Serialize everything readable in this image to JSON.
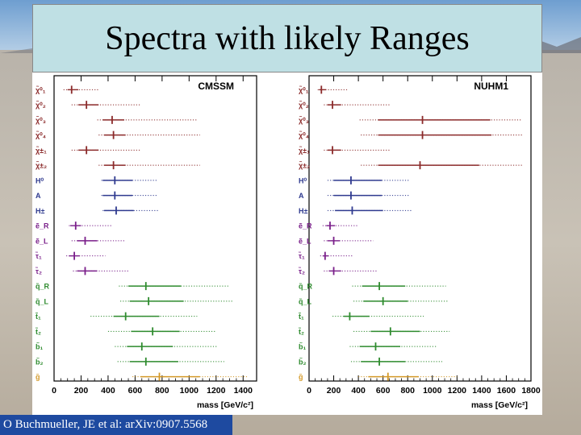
{
  "title": "Spectra with likely Ranges",
  "citation": "O Buchmueller, JE et al: arXiv:0907.5568",
  "colors": {
    "neutralino": "#8b2a2a",
    "higgs": "#2f3a8f",
    "slepton": "#7a1f8a",
    "squark": "#2e8b2e",
    "gluino": "#d49a2a"
  },
  "particles": [
    "χ̃⁰₁",
    "χ̃⁰₂",
    "χ̃⁰₃",
    "χ̃⁰₄",
    "χ̃±₁",
    "χ̃±₂",
    "H⁰",
    "A",
    "H±",
    "ẽ_R",
    "ẽ_L",
    "τ̃₁",
    "τ̃₂",
    "q̃_R",
    "q̃_L",
    "t̃₁",
    "t̃₂",
    "b̃₁",
    "b̃₂",
    "g̃"
  ],
  "groups": [
    "neutralino",
    "neutralino",
    "neutralino",
    "neutralino",
    "neutralino",
    "neutralino",
    "higgs",
    "higgs",
    "higgs",
    "slepton",
    "slepton",
    "slepton",
    "slepton",
    "squark",
    "squark",
    "squark",
    "squark",
    "squark",
    "squark",
    "gluino"
  ],
  "chart_data": [
    {
      "type": "range",
      "title": "CMSSM",
      "xlabel": "mass [GeV/c²]",
      "xlim": [
        0,
        1500
      ],
      "ticks": [
        "0",
        "200",
        "400",
        "600",
        "800",
        "1000",
        "1200",
        "1400"
      ],
      "tick_values": [
        0,
        200,
        400,
        600,
        800,
        1000,
        1200,
        1400
      ],
      "series": [
        {
          "name": "χ̃⁰₁",
          "best": 130,
          "solid": [
            100,
            180
          ],
          "dotted": [
            70,
            330
          ]
        },
        {
          "name": "χ̃⁰₂",
          "best": 240,
          "solid": [
            180,
            330
          ],
          "dotted": [
            130,
            640
          ]
        },
        {
          "name": "χ̃⁰₃",
          "best": 430,
          "solid": [
            360,
            520
          ],
          "dotted": [
            320,
            1060
          ]
        },
        {
          "name": "χ̃⁰₄",
          "best": 440,
          "solid": [
            370,
            530
          ],
          "dotted": [
            330,
            1080
          ]
        },
        {
          "name": "χ̃±₁",
          "best": 240,
          "solid": [
            180,
            330
          ],
          "dotted": [
            130,
            640
          ]
        },
        {
          "name": "χ̃±₂",
          "best": 440,
          "solid": [
            370,
            530
          ],
          "dotted": [
            330,
            1080
          ]
        },
        {
          "name": "H⁰",
          "best": 450,
          "solid": [
            360,
            580
          ],
          "dotted": [
            350,
            760
          ]
        },
        {
          "name": "A",
          "best": 450,
          "solid": [
            360,
            580
          ],
          "dotted": [
            350,
            760
          ]
        },
        {
          "name": "H±",
          "best": 460,
          "solid": [
            370,
            590
          ],
          "dotted": [
            360,
            770
          ]
        },
        {
          "name": "ẽ_R",
          "best": 160,
          "solid": [
            120,
            200
          ],
          "dotted": [
            110,
            430
          ]
        },
        {
          "name": "ẽ_L",
          "best": 230,
          "solid": [
            170,
            320
          ],
          "dotted": [
            130,
            530
          ]
        },
        {
          "name": "τ̃₁",
          "best": 150,
          "solid": [
            110,
            190
          ],
          "dotted": [
            90,
            380
          ]
        },
        {
          "name": "τ̃₂",
          "best": 230,
          "solid": [
            170,
            320
          ],
          "dotted": [
            140,
            560
          ]
        },
        {
          "name": "q̃_R",
          "best": 680,
          "solid": [
            550,
            940
          ],
          "dotted": [
            480,
            1290
          ]
        },
        {
          "name": "q̃_L",
          "best": 700,
          "solid": [
            560,
            960
          ],
          "dotted": [
            490,
            1320
          ]
        },
        {
          "name": "t̃₁",
          "best": 530,
          "solid": [
            440,
            780
          ],
          "dotted": [
            270,
            1060
          ]
        },
        {
          "name": "t̃₂",
          "best": 730,
          "solid": [
            570,
            930
          ],
          "dotted": [
            400,
            1200
          ]
        },
        {
          "name": "b̃₁",
          "best": 650,
          "solid": [
            540,
            880
          ],
          "dotted": [
            450,
            1210
          ]
        },
        {
          "name": "b̃₂",
          "best": 680,
          "solid": [
            560,
            920
          ],
          "dotted": [
            470,
            1260
          ]
        },
        {
          "name": "g̃",
          "best": 780,
          "solid": [
            640,
            1080
          ],
          "dotted": [
            580,
            1430
          ]
        }
      ]
    },
    {
      "type": "range",
      "title": "NUHM1",
      "xlabel": "mass [GeV/c²]",
      "xlim": [
        0,
        1800
      ],
      "ticks": [
        "0",
        "200",
        "400",
        "600",
        "800",
        "1000",
        "1200",
        "1400",
        "1600",
        "1800"
      ],
      "tick_values": [
        0,
        200,
        400,
        600,
        800,
        1000,
        1200,
        1400,
        1600,
        1800
      ],
      "series": [
        {
          "name": "χ̃⁰₁",
          "best": 100,
          "solid": [
            80,
            140
          ],
          "dotted": [
            70,
            320
          ]
        },
        {
          "name": "χ̃⁰₂",
          "best": 190,
          "solid": [
            150,
            260
          ],
          "dotted": [
            120,
            660
          ]
        },
        {
          "name": "χ̃⁰₃",
          "best": 920,
          "solid": [
            560,
            1470
          ],
          "dotted": [
            410,
            1720
          ]
        },
        {
          "name": "χ̃⁰₄",
          "best": 920,
          "solid": [
            560,
            1480
          ],
          "dotted": [
            420,
            1730
          ]
        },
        {
          "name": "χ̃±₁",
          "best": 190,
          "solid": [
            150,
            260
          ],
          "dotted": [
            120,
            660
          ]
        },
        {
          "name": "χ̃±₂",
          "best": 900,
          "solid": [
            560,
            1380
          ],
          "dotted": [
            420,
            1730
          ]
        },
        {
          "name": "H⁰",
          "best": 340,
          "solid": [
            200,
            590
          ],
          "dotted": [
            150,
            820
          ]
        },
        {
          "name": "A",
          "best": 340,
          "solid": [
            200,
            590
          ],
          "dotted": [
            150,
            820
          ]
        },
        {
          "name": "H±",
          "best": 350,
          "solid": [
            210,
            600
          ],
          "dotted": [
            150,
            830
          ]
        },
        {
          "name": "ẽ_R",
          "best": 170,
          "solid": [
            140,
            210
          ],
          "dotted": [
            110,
            400
          ]
        },
        {
          "name": "ẽ_L",
          "best": 200,
          "solid": [
            150,
            250
          ],
          "dotted": [
            120,
            520
          ]
        },
        {
          "name": "τ̃₁",
          "best": 130,
          "solid": [
            110,
            160
          ],
          "dotted": [
            90,
            360
          ]
        },
        {
          "name": "τ̃₂",
          "best": 200,
          "solid": [
            160,
            260
          ],
          "dotted": [
            120,
            560
          ]
        },
        {
          "name": "q̃_R",
          "best": 570,
          "solid": [
            430,
            780
          ],
          "dotted": [
            350,
            1110
          ]
        },
        {
          "name": "q̃_L",
          "best": 600,
          "solid": [
            440,
            800
          ],
          "dotted": [
            360,
            1130
          ]
        },
        {
          "name": "t̃₁",
          "best": 330,
          "solid": [
            280,
            490
          ],
          "dotted": [
            190,
            930
          ]
        },
        {
          "name": "t̃₂",
          "best": 660,
          "solid": [
            500,
            900
          ],
          "dotted": [
            360,
            1140
          ]
        },
        {
          "name": "b̃₁",
          "best": 540,
          "solid": [
            410,
            740
          ],
          "dotted": [
            330,
            1030
          ]
        },
        {
          "name": "b̃₂",
          "best": 570,
          "solid": [
            420,
            780
          ],
          "dotted": [
            340,
            1080
          ]
        },
        {
          "name": "g̃",
          "best": 640,
          "solid": [
            480,
            890
          ],
          "dotted": [
            400,
            1200
          ]
        }
      ]
    }
  ]
}
